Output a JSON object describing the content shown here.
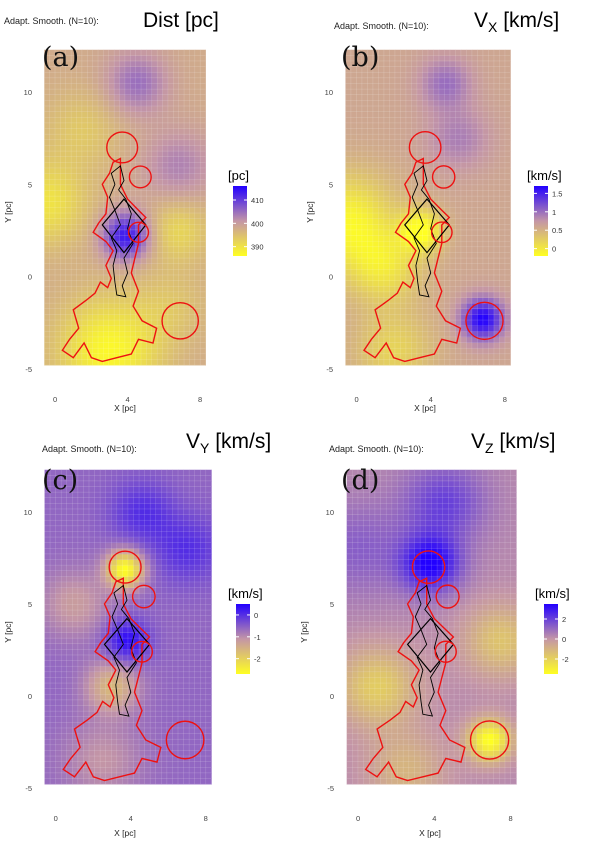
{
  "chart_data": [
    {
      "type": "heatmap",
      "panel": "(a)",
      "title_prefix": "Adapt. Smooth. (N=10):",
      "title": "Dist [pc]",
      "title_sub": "",
      "title_suffix": "",
      "xlabel": "X [pc]",
      "ylabel": "Y [pc]",
      "xticks": [
        0,
        4,
        8
      ],
      "yticks": [
        -5,
        0,
        5,
        10
      ],
      "xlim": [
        -1,
        8.6
      ],
      "ylim": [
        -5.5,
        12.5
      ],
      "legend_title": "[pc]",
      "legend_ticks": [
        410,
        400,
        390
      ],
      "color_range": [
        386,
        416
      ],
      "base_value": 398,
      "blobs": [
        {
          "x": 3.9,
          "y": 2.2,
          "value": 414,
          "r": 0.9
        },
        {
          "x": 4.5,
          "y": 10.5,
          "value": 405,
          "r": 1.2
        },
        {
          "x": 6.8,
          "y": 6.0,
          "value": 403,
          "r": 1.4
        },
        {
          "x": 3.0,
          "y": -4.0,
          "value": 387,
          "r": 2.0
        },
        {
          "x": -0.5,
          "y": 4.0,
          "value": 390,
          "r": 1.6
        },
        {
          "x": 6.8,
          "y": 2.5,
          "value": 392,
          "r": 1.2
        },
        {
          "x": 1.5,
          "y": 8.0,
          "value": 394,
          "r": 1.5
        },
        {
          "x": 6.5,
          "y": -1.5,
          "value": 395,
          "r": 1.4
        }
      ]
    },
    {
      "type": "heatmap",
      "panel": "(b)",
      "title_prefix": "Adapt. Smooth. (N=10):",
      "title": "V",
      "title_sub": "X",
      "title_suffix": " [km/s]",
      "xlabel": "X [pc]",
      "ylabel": "Y [pc]",
      "xticks": [
        0,
        4,
        8
      ],
      "yticks": [
        -5,
        0,
        5,
        10
      ],
      "xlim": [
        -1,
        8.6
      ],
      "ylim": [
        -5.5,
        12.5
      ],
      "legend_title": "[km/s]",
      "legend_ticks": [
        1.5,
        1.0,
        0.5,
        0.0
      ],
      "color_range": [
        -0.2,
        1.7
      ],
      "base_value": 0.6,
      "blobs": [
        {
          "x": 6.8,
          "y": -2.3,
          "value": 1.7,
          "r": 0.8
        },
        {
          "x": 4.8,
          "y": 10.5,
          "value": 1.0,
          "r": 1.0
        },
        {
          "x": 5.5,
          "y": 7.5,
          "value": 0.9,
          "r": 1.2
        },
        {
          "x": -0.5,
          "y": 3.0,
          "value": -0.1,
          "r": 1.8
        },
        {
          "x": 3.5,
          "y": 2.5,
          "value": -0.2,
          "r": 0.8
        },
        {
          "x": 1.5,
          "y": 0.5,
          "value": 0.1,
          "r": 1.4
        },
        {
          "x": 2.0,
          "y": -4.0,
          "value": 0.2,
          "r": 1.5
        }
      ]
    },
    {
      "type": "heatmap",
      "panel": "(c)",
      "title_prefix": "Adapt. Smooth. (N=10):",
      "title": "V",
      "title_sub": "Y",
      "title_suffix": " [km/s]",
      "xlabel": "X [pc]",
      "ylabel": "Y [pc]",
      "xticks": [
        0,
        4,
        8
      ],
      "yticks": [
        -5,
        0,
        5,
        10
      ],
      "xlim": [
        -1,
        8.6
      ],
      "ylim": [
        -5.5,
        12.5
      ],
      "legend_title": "[km/s]",
      "legend_ticks": [
        0,
        -1,
        -2
      ],
      "color_range": [
        -2.7,
        0.5
      ],
      "base_value": -0.6,
      "blobs": [
        {
          "x": 3.7,
          "y": 6.9,
          "value": -2.7,
          "r": 0.7
        },
        {
          "x": 3.8,
          "y": 3.0,
          "value": 0.4,
          "r": 0.8
        },
        {
          "x": 4.6,
          "y": 10.0,
          "value": 0.0,
          "r": 1.2
        },
        {
          "x": 7.0,
          "y": 8.0,
          "value": 0.0,
          "r": 1.3
        },
        {
          "x": 3.0,
          "y": 0.5,
          "value": -1.6,
          "r": 1.0
        },
        {
          "x": 1.0,
          "y": 5.0,
          "value": -1.2,
          "r": 1.3
        },
        {
          "x": 2.5,
          "y": -3.5,
          "value": -1.1,
          "r": 1.5
        }
      ]
    },
    {
      "type": "heatmap",
      "panel": "(d)",
      "title_prefix": "Adapt. Smooth. (N=10):",
      "title": "V",
      "title_sub": "Z",
      "title_suffix": " [km/s]",
      "xlabel": "X [pc]",
      "ylabel": "Y [pc]",
      "xticks": [
        0,
        4,
        8
      ],
      "yticks": [
        -5,
        0,
        5,
        10
      ],
      "xlim": [
        -1,
        8.6
      ],
      "ylim": [
        -5.5,
        12.5
      ],
      "legend_title": "[km/s]",
      "legend_ticks": [
        2,
        0,
        -2
      ],
      "color_range": [
        -3.5,
        3.5
      ],
      "base_value": 0.3,
      "blobs": [
        {
          "x": 3.8,
          "y": 7.2,
          "value": 3.5,
          "r": 1.1
        },
        {
          "x": 4.5,
          "y": 10.5,
          "value": 2.0,
          "r": 1.5
        },
        {
          "x": 0.0,
          "y": 8.0,
          "value": 1.3,
          "r": 1.8
        },
        {
          "x": 6.9,
          "y": -2.4,
          "value": -3.5,
          "r": 0.8
        },
        {
          "x": 1.0,
          "y": 0.5,
          "value": -1.8,
          "r": 1.5
        },
        {
          "x": 7.5,
          "y": 3.0,
          "value": -1.5,
          "r": 1.4
        },
        {
          "x": 2.5,
          "y": -4.0,
          "value": -1.0,
          "r": 1.5
        }
      ]
    }
  ],
  "overlays": {
    "circles": [
      {
        "x": 3.7,
        "y": 7.0,
        "r": 0.85
      },
      {
        "x": 4.7,
        "y": 5.4,
        "r": 0.6
      },
      {
        "x": 4.6,
        "y": 2.4,
        "r": 0.55
      },
      {
        "x": 6.9,
        "y": -2.4,
        "r": 1.0
      }
    ],
    "diamond": [
      [
        3.8,
        4.2
      ],
      [
        5.0,
        2.8
      ],
      [
        3.8,
        1.3
      ],
      [
        2.6,
        2.8
      ]
    ],
    "red_contour": [
      [
        3.2,
        6.2
      ],
      [
        3.6,
        6.4
      ],
      [
        3.6,
        5.0
      ],
      [
        4.0,
        4.2
      ],
      [
        4.6,
        3.6
      ],
      [
        5.0,
        3.2
      ],
      [
        4.6,
        2.8
      ],
      [
        4.6,
        1.8
      ],
      [
        4.4,
        1.0
      ],
      [
        4.2,
        0.2
      ],
      [
        4.6,
        -0.8
      ],
      [
        4.3,
        -1.6
      ],
      [
        4.8,
        -2.4
      ],
      [
        5.6,
        -2.8
      ],
      [
        5.4,
        -3.6
      ],
      [
        4.6,
        -3.4
      ],
      [
        4.2,
        -4.2
      ],
      [
        3.4,
        -4.4
      ],
      [
        2.6,
        -4.6
      ],
      [
        2.0,
        -4.4
      ],
      [
        1.6,
        -3.6
      ],
      [
        1.0,
        -4.4
      ],
      [
        0.4,
        -4.0
      ],
      [
        0.8,
        -3.4
      ],
      [
        1.3,
        -2.8
      ],
      [
        1.0,
        -1.8
      ],
      [
        1.7,
        -1.3
      ],
      [
        2.2,
        -0.9
      ],
      [
        2.5,
        -0.3
      ],
      [
        2.9,
        -0.6
      ],
      [
        3.1,
        -0.1
      ],
      [
        2.8,
        0.6
      ],
      [
        3.2,
        1.4
      ],
      [
        2.8,
        1.9
      ],
      [
        2.1,
        2.4
      ],
      [
        2.4,
        2.9
      ],
      [
        2.8,
        3.4
      ],
      [
        2.9,
        4.3
      ],
      [
        2.6,
        5.0
      ],
      [
        3.0,
        5.6
      ],
      [
        3.2,
        6.2
      ]
    ],
    "black_contour": [
      [
        3.6,
        6.0
      ],
      [
        3.8,
        5.2
      ],
      [
        3.5,
        4.7
      ],
      [
        3.9,
        4.2
      ],
      [
        4.2,
        3.4
      ],
      [
        4.0,
        2.6
      ],
      [
        4.3,
        1.8
      ],
      [
        3.8,
        1.0
      ],
      [
        4.0,
        0.2
      ],
      [
        3.7,
        -0.5
      ],
      [
        3.9,
        -1.1
      ],
      [
        3.4,
        -1.0
      ],
      [
        3.3,
        -0.3
      ],
      [
        3.2,
        0.6
      ],
      [
        3.4,
        1.4
      ],
      [
        3.1,
        2.1
      ],
      [
        3.6,
        2.8
      ],
      [
        3.3,
        3.6
      ],
      [
        3.0,
        4.3
      ],
      [
        3.3,
        5.0
      ],
      [
        3.1,
        5.6
      ],
      [
        3.6,
        6.0
      ]
    ]
  },
  "colors": {
    "low": "#ffff22",
    "mid": "#c496a6",
    "high": "#2200ff",
    "overlay_red": "#ee1111",
    "overlay_black": "#000000",
    "grid": "#ffffff"
  }
}
